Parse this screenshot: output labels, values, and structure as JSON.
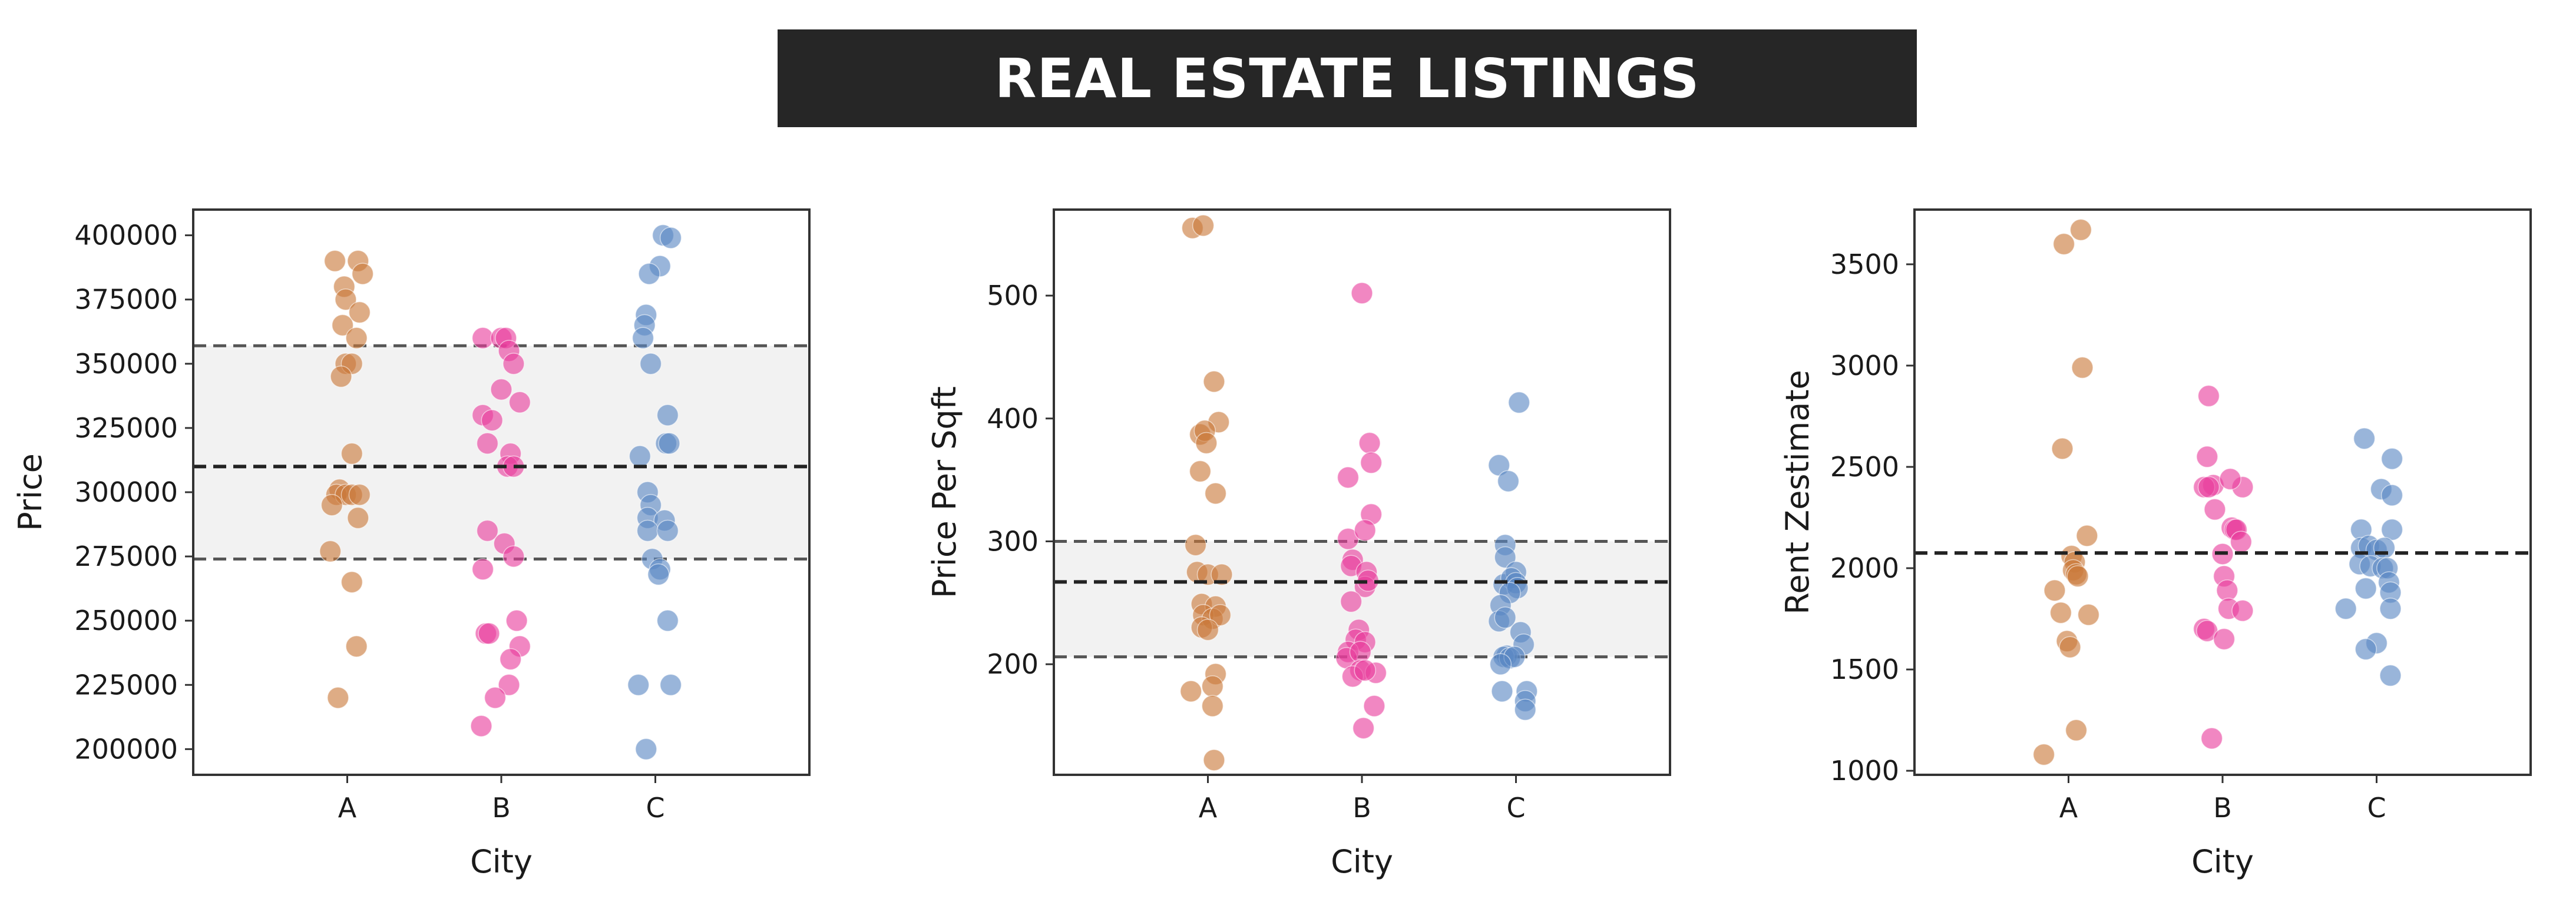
{
  "title": "REAL ESTATE LISTINGS",
  "colors": {
    "A": "#c9793a",
    "B": "#e83e9c",
    "C": "#5b87c4",
    "band": "#f2f2f2",
    "line": "#222222",
    "quartile": "#555555"
  },
  "chart_data": [
    {
      "type": "scatter",
      "title": "",
      "xlabel": "City",
      "ylabel": "Price",
      "categories": [
        "A",
        "B",
        "C"
      ],
      "ylim": [
        190000,
        410000
      ],
      "yticks": [
        200000,
        225000,
        250000,
        275000,
        300000,
        325000,
        350000,
        375000,
        400000
      ],
      "ytick_labels": [
        "200000",
        "225000",
        "250000",
        "275000",
        "300000",
        "325000",
        "350000",
        "375000",
        "400000"
      ],
      "median": 310000,
      "q1": 274000,
      "q3": 357000,
      "series": [
        {
          "category": "A",
          "points": [
            {
              "j": -0.08,
              "y": 390000
            },
            {
              "j": 0.07,
              "y": 390000
            },
            {
              "j": 0.1,
              "y": 385000
            },
            {
              "j": -0.02,
              "y": 380000
            },
            {
              "j": -0.01,
              "y": 375000
            },
            {
              "j": 0.08,
              "y": 370000
            },
            {
              "j": -0.03,
              "y": 365000
            },
            {
              "j": 0.06,
              "y": 360000
            },
            {
              "j": -0.01,
              "y": 350000
            },
            {
              "j": 0.03,
              "y": 350000
            },
            {
              "j": -0.04,
              "y": 345000
            },
            {
              "j": 0.03,
              "y": 315000
            },
            {
              "j": -0.05,
              "y": 301000
            },
            {
              "j": -0.07,
              "y": 299000
            },
            {
              "j": -0.01,
              "y": 299000
            },
            {
              "j": 0.03,
              "y": 299000
            },
            {
              "j": 0.08,
              "y": 299000
            },
            {
              "j": -0.1,
              "y": 295000
            },
            {
              "j": 0.07,
              "y": 290000
            },
            {
              "j": -0.11,
              "y": 277000
            },
            {
              "j": 0.03,
              "y": 265000
            },
            {
              "j": 0.06,
              "y": 240000
            },
            {
              "j": -0.06,
              "y": 220000
            }
          ]
        },
        {
          "category": "B",
          "points": [
            {
              "j": -0.12,
              "y": 360000
            },
            {
              "j": 0.0,
              "y": 360000
            },
            {
              "j": 0.03,
              "y": 360000
            },
            {
              "j": 0.05,
              "y": 355000
            },
            {
              "j": 0.08,
              "y": 350000
            },
            {
              "j": 0.12,
              "y": 335000
            },
            {
              "j": 0.0,
              "y": 340000
            },
            {
              "j": -0.12,
              "y": 330000
            },
            {
              "j": -0.06,
              "y": 328000
            },
            {
              "j": -0.09,
              "y": 319000
            },
            {
              "j": 0.06,
              "y": 315000
            },
            {
              "j": 0.04,
              "y": 310000
            },
            {
              "j": 0.08,
              "y": 310000
            },
            {
              "j": -0.09,
              "y": 285000
            },
            {
              "j": 0.02,
              "y": 280000
            },
            {
              "j": 0.08,
              "y": 275000
            },
            {
              "j": -0.12,
              "y": 270000
            },
            {
              "j": 0.1,
              "y": 250000
            },
            {
              "j": -0.1,
              "y": 245000
            },
            {
              "j": -0.08,
              "y": 245000
            },
            {
              "j": 0.12,
              "y": 240000
            },
            {
              "j": 0.06,
              "y": 235000
            },
            {
              "j": 0.05,
              "y": 225000
            },
            {
              "j": -0.04,
              "y": 220000
            },
            {
              "j": -0.13,
              "y": 209000
            }
          ]
        },
        {
          "category": "C",
          "points": [
            {
              "j": 0.05,
              "y": 400000
            },
            {
              "j": 0.1,
              "y": 399000
            },
            {
              "j": 0.03,
              "y": 388000
            },
            {
              "j": -0.04,
              "y": 385000
            },
            {
              "j": -0.06,
              "y": 369000
            },
            {
              "j": -0.07,
              "y": 365000
            },
            {
              "j": -0.08,
              "y": 360000
            },
            {
              "j": -0.03,
              "y": 350000
            },
            {
              "j": 0.08,
              "y": 330000
            },
            {
              "j": -0.1,
              "y": 314000
            },
            {
              "j": 0.07,
              "y": 319000
            },
            {
              "j": 0.09,
              "y": 319000
            },
            {
              "j": -0.05,
              "y": 300000
            },
            {
              "j": -0.03,
              "y": 295000
            },
            {
              "j": -0.05,
              "y": 290000
            },
            {
              "j": 0.06,
              "y": 289000
            },
            {
              "j": -0.05,
              "y": 285000
            },
            {
              "j": 0.08,
              "y": 285000
            },
            {
              "j": -0.02,
              "y": 274000
            },
            {
              "j": 0.03,
              "y": 270000
            },
            {
              "j": 0.02,
              "y": 268000
            },
            {
              "j": 0.08,
              "y": 250000
            },
            {
              "j": -0.11,
              "y": 225000
            },
            {
              "j": 0.1,
              "y": 225000
            },
            {
              "j": -0.06,
              "y": 200000
            }
          ]
        }
      ]
    },
    {
      "type": "scatter",
      "title": "",
      "xlabel": "City",
      "ylabel": "Price Per Sqft",
      "categories": [
        "A",
        "B",
        "C"
      ],
      "ylim": [
        110,
        570
      ],
      "yticks": [
        200,
        300,
        400,
        500
      ],
      "ytick_labels": [
        "200",
        "300",
        "400",
        "500"
      ],
      "median": 267,
      "q1": 206,
      "q3": 300,
      "series": [
        {
          "category": "A",
          "points": [
            {
              "j": -0.1,
              "y": 555
            },
            {
              "j": -0.03,
              "y": 557
            },
            {
              "j": 0.04,
              "y": 430
            },
            {
              "j": 0.07,
              "y": 397
            },
            {
              "j": -0.05,
              "y": 387
            },
            {
              "j": -0.02,
              "y": 390
            },
            {
              "j": -0.01,
              "y": 380
            },
            {
              "j": -0.05,
              "y": 357
            },
            {
              "j": 0.05,
              "y": 339
            },
            {
              "j": -0.08,
              "y": 297
            },
            {
              "j": -0.07,
              "y": 275
            },
            {
              "j": 0.0,
              "y": 273
            },
            {
              "j": 0.09,
              "y": 273
            },
            {
              "j": -0.04,
              "y": 249
            },
            {
              "j": 0.05,
              "y": 247
            },
            {
              "j": -0.03,
              "y": 240
            },
            {
              "j": 0.03,
              "y": 237
            },
            {
              "j": 0.08,
              "y": 240
            },
            {
              "j": -0.04,
              "y": 230
            },
            {
              "j": 0.0,
              "y": 228
            },
            {
              "j": 0.05,
              "y": 192
            },
            {
              "j": -0.11,
              "y": 178
            },
            {
              "j": 0.03,
              "y": 182
            },
            {
              "j": 0.03,
              "y": 166
            },
            {
              "j": 0.04,
              "y": 122
            }
          ]
        },
        {
          "category": "B",
          "points": [
            {
              "j": 0.0,
              "y": 502
            },
            {
              "j": 0.05,
              "y": 380
            },
            {
              "j": 0.06,
              "y": 364
            },
            {
              "j": -0.09,
              "y": 352
            },
            {
              "j": 0.06,
              "y": 322
            },
            {
              "j": -0.09,
              "y": 302
            },
            {
              "j": 0.02,
              "y": 309
            },
            {
              "j": -0.06,
              "y": 285
            },
            {
              "j": -0.07,
              "y": 280
            },
            {
              "j": 0.03,
              "y": 275
            },
            {
              "j": 0.02,
              "y": 263
            },
            {
              "j": 0.04,
              "y": 268
            },
            {
              "j": -0.07,
              "y": 251
            },
            {
              "j": -0.02,
              "y": 228
            },
            {
              "j": -0.04,
              "y": 220
            },
            {
              "j": 0.02,
              "y": 218
            },
            {
              "j": -0.09,
              "y": 210
            },
            {
              "j": -0.1,
              "y": 205
            },
            {
              "j": -0.01,
              "y": 210
            },
            {
              "j": -0.01,
              "y": 195
            },
            {
              "j": 0.09,
              "y": 193
            },
            {
              "j": -0.06,
              "y": 190
            },
            {
              "j": 0.08,
              "y": 166
            },
            {
              "j": 0.01,
              "y": 148
            },
            {
              "j": 0.02,
              "y": 195
            }
          ]
        },
        {
          "category": "C",
          "points": [
            {
              "j": 0.02,
              "y": 413
            },
            {
              "j": -0.11,
              "y": 362
            },
            {
              "j": -0.05,
              "y": 349
            },
            {
              "j": -0.07,
              "y": 297
            },
            {
              "j": -0.07,
              "y": 287
            },
            {
              "j": -0.08,
              "y": 265
            },
            {
              "j": 0.0,
              "y": 275
            },
            {
              "j": -0.03,
              "y": 270
            },
            {
              "j": 0.0,
              "y": 266
            },
            {
              "j": 0.01,
              "y": 262
            },
            {
              "j": -0.04,
              "y": 258
            },
            {
              "j": -0.1,
              "y": 248
            },
            {
              "j": -0.11,
              "y": 235
            },
            {
              "j": -0.07,
              "y": 238
            },
            {
              "j": 0.03,
              "y": 226
            },
            {
              "j": 0.05,
              "y": 216
            },
            {
              "j": -0.06,
              "y": 207
            },
            {
              "j": -0.08,
              "y": 206
            },
            {
              "j": -0.04,
              "y": 205
            },
            {
              "j": -0.01,
              "y": 206
            },
            {
              "j": -0.1,
              "y": 200
            },
            {
              "j": -0.09,
              "y": 178
            },
            {
              "j": 0.07,
              "y": 178
            },
            {
              "j": 0.06,
              "y": 170
            },
            {
              "j": 0.06,
              "y": 163
            }
          ]
        }
      ]
    },
    {
      "type": "scatter",
      "title": "",
      "xlabel": "City",
      "ylabel": "Rent Zestimate",
      "categories": [
        "A",
        "B",
        "C"
      ],
      "ylim": [
        980,
        3770
      ],
      "yticks": [
        1000,
        1500,
        2000,
        2500,
        3000,
        3500
      ],
      "ytick_labels": [
        "1000",
        "1500",
        "2000",
        "2500",
        "3000",
        "3500"
      ],
      "median": 2075,
      "series": [
        {
          "category": "A",
          "points": [
            {
              "j": 0.08,
              "y": 3670
            },
            {
              "j": -0.03,
              "y": 3600
            },
            {
              "j": 0.09,
              "y": 2990
            },
            {
              "j": -0.04,
              "y": 2590
            },
            {
              "j": 0.12,
              "y": 2160
            },
            {
              "j": 0.02,
              "y": 2060
            },
            {
              "j": 0.04,
              "y": 2030
            },
            {
              "j": 0.03,
              "y": 1990
            },
            {
              "j": 0.05,
              "y": 1970
            },
            {
              "j": 0.06,
              "y": 1960
            },
            {
              "j": -0.09,
              "y": 1890
            },
            {
              "j": -0.05,
              "y": 1780
            },
            {
              "j": 0.13,
              "y": 1770
            },
            {
              "j": -0.01,
              "y": 1640
            },
            {
              "j": 0.01,
              "y": 1610
            },
            {
              "j": 0.05,
              "y": 1200
            },
            {
              "j": -0.16,
              "y": 1080
            }
          ]
        },
        {
          "category": "B",
          "points": [
            {
              "j": -0.09,
              "y": 2850
            },
            {
              "j": -0.1,
              "y": 2550
            },
            {
              "j": -0.06,
              "y": 2410
            },
            {
              "j": -0.12,
              "y": 2400
            },
            {
              "j": 0.13,
              "y": 2400
            },
            {
              "j": 0.05,
              "y": 2440
            },
            {
              "j": -0.09,
              "y": 2400
            },
            {
              "j": -0.05,
              "y": 2290
            },
            {
              "j": 0.06,
              "y": 2200
            },
            {
              "j": 0.08,
              "y": 2190
            },
            {
              "j": 0.09,
              "y": 2190
            },
            {
              "j": 0.12,
              "y": 2130
            },
            {
              "j": 0.0,
              "y": 2070
            },
            {
              "j": 0.01,
              "y": 1960
            },
            {
              "j": 0.03,
              "y": 1890
            },
            {
              "j": 0.04,
              "y": 1800
            },
            {
              "j": 0.13,
              "y": 1790
            },
            {
              "j": -0.12,
              "y": 1700
            },
            {
              "j": -0.1,
              "y": 1690
            },
            {
              "j": 0.01,
              "y": 1650
            },
            {
              "j": -0.07,
              "y": 1160
            }
          ]
        },
        {
          "category": "C",
          "points": [
            {
              "j": -0.08,
              "y": 2640
            },
            {
              "j": 0.1,
              "y": 2540
            },
            {
              "j": 0.03,
              "y": 2390
            },
            {
              "j": 0.1,
              "y": 2360
            },
            {
              "j": -0.1,
              "y": 2190
            },
            {
              "j": 0.1,
              "y": 2190
            },
            {
              "j": -0.1,
              "y": 2100
            },
            {
              "j": -0.05,
              "y": 2110
            },
            {
              "j": 0.0,
              "y": 2090
            },
            {
              "j": 0.05,
              "y": 2100
            },
            {
              "j": -0.11,
              "y": 2020
            },
            {
              "j": -0.04,
              "y": 2010
            },
            {
              "j": 0.04,
              "y": 2000
            },
            {
              "j": 0.07,
              "y": 2000
            },
            {
              "j": -0.07,
              "y": 1900
            },
            {
              "j": 0.08,
              "y": 1930
            },
            {
              "j": 0.09,
              "y": 1880
            },
            {
              "j": -0.2,
              "y": 1800
            },
            {
              "j": 0.09,
              "y": 1800
            },
            {
              "j": 0.0,
              "y": 1630
            },
            {
              "j": -0.07,
              "y": 1600
            },
            {
              "j": 0.09,
              "y": 1470
            }
          ]
        }
      ]
    }
  ]
}
